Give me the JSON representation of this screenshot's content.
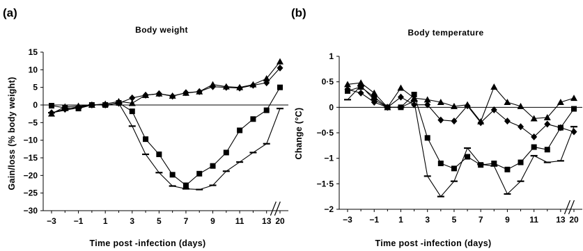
{
  "chart_data": [
    {
      "panel_label": "(a)",
      "type": "line",
      "title": "Body weight",
      "xlabel": "Time post -infection (days)",
      "ylabel": "Gain/loss (% body weight)",
      "x_tick_labels": [
        "−3",
        "−1",
        "1",
        "3",
        "5",
        "7",
        "9",
        "11",
        "13",
        "20"
      ],
      "y_tick_labels": [
        "15",
        "10",
        "5",
        "0",
        "−5",
        "−10",
        "−15",
        "−20",
        "−25",
        "−30"
      ],
      "x_ticks": [
        -3,
        -1,
        1,
        3,
        5,
        7,
        9,
        11,
        13,
        20
      ],
      "xlim": [
        -3.5,
        20.5
      ],
      "ylim": [
        -30,
        15
      ],
      "axis_break_between": [
        13,
        20
      ],
      "reference_line": 0,
      "x": [
        -3,
        -2,
        -1,
        0,
        1,
        2,
        3,
        4,
        5,
        6,
        7,
        8,
        9,
        10,
        11,
        12,
        13,
        20
      ],
      "series": [
        {
          "marker": "triangle",
          "values": [
            -2.5,
            -0.5,
            -0.3,
            0,
            0.3,
            1,
            0.5,
            2.8,
            3.2,
            2.6,
            3.4,
            3.8,
            5.8,
            5.2,
            5.0,
            5.8,
            7.5,
            12.3
          ]
        },
        {
          "marker": "diamond",
          "values": [
            -2.2,
            -1.2,
            -0.5,
            0,
            0,
            0.5,
            2,
            2.8,
            3.2,
            2.5,
            3.5,
            3.8,
            5.2,
            5.0,
            4.8,
            5.6,
            6.3,
            10.5
          ]
        },
        {
          "marker": "square",
          "values": [
            -0.2,
            -0.8,
            -1.0,
            0,
            0,
            0.6,
            -1.8,
            -9.7,
            -14,
            -19.8,
            -22.8,
            -19.5,
            -17.3,
            -13.5,
            -7.2,
            -4,
            -1.5,
            5
          ]
        },
        {
          "marker": "dash",
          "values": [
            -2.2,
            -1.5,
            -0.8,
            0,
            0,
            0.5,
            -6,
            -14,
            -19.2,
            -23,
            -23.8,
            -24,
            -22.8,
            -18.8,
            -16.2,
            -13.5,
            -11,
            -1
          ]
        }
      ]
    },
    {
      "panel_label": "(b)",
      "type": "line",
      "title": "Body temperature",
      "xlabel": "Time post -infection (days)",
      "ylabel": "Change (°C)",
      "x_tick_labels": [
        "−3",
        "−1",
        "1",
        "3",
        "5",
        "7",
        "9",
        "11",
        "13",
        "20"
      ],
      "y_tick_labels": [
        "1",
        "0·5",
        "0",
        "−0·5",
        "−1",
        "−1·5",
        "−2"
      ],
      "x_ticks": [
        -3,
        -1,
        1,
        3,
        5,
        7,
        9,
        11,
        13,
        20
      ],
      "xlim": [
        -3.5,
        20.5
      ],
      "ylim": [
        -2,
        1
      ],
      "axis_break_between": [
        13,
        20
      ],
      "reference_line": 0,
      "x": [
        -3,
        -2,
        -1,
        0,
        1,
        2,
        3,
        4,
        5,
        6,
        7,
        8,
        9,
        10,
        11,
        12,
        13,
        20
      ],
      "series": [
        {
          "marker": "triangle",
          "values": [
            0.45,
            0.48,
            0.28,
            0,
            0.38,
            0.18,
            0.15,
            0.1,
            0.02,
            0.05,
            -0.28,
            0.4,
            0.1,
            0.02,
            -0.22,
            -0.2,
            0.1,
            0.18
          ]
        },
        {
          "marker": "diamond",
          "values": [
            0.35,
            0.28,
            0.1,
            0,
            0.2,
            0.05,
            0.05,
            -0.25,
            -0.27,
            0.03,
            -0.3,
            -0.05,
            -0.27,
            -0.38,
            -0.58,
            -0.33,
            -0.4,
            -0.48
          ]
        },
        {
          "marker": "square",
          "values": [
            0.32,
            0.4,
            0.2,
            0,
            0,
            0.25,
            -0.6,
            -1.1,
            -1.2,
            -0.97,
            -1.13,
            -1.1,
            -1.22,
            -1.08,
            -0.78,
            -0.83,
            -0.4,
            -0.03
          ]
        },
        {
          "marker": "dash",
          "values": [
            0.15,
            0.42,
            0.15,
            0,
            0,
            0.12,
            -1.35,
            -1.75,
            -1.45,
            -0.8,
            -1.12,
            -1.15,
            -1.7,
            -1.45,
            -0.95,
            -1.08,
            -1.05,
            -0.38
          ]
        }
      ]
    }
  ]
}
